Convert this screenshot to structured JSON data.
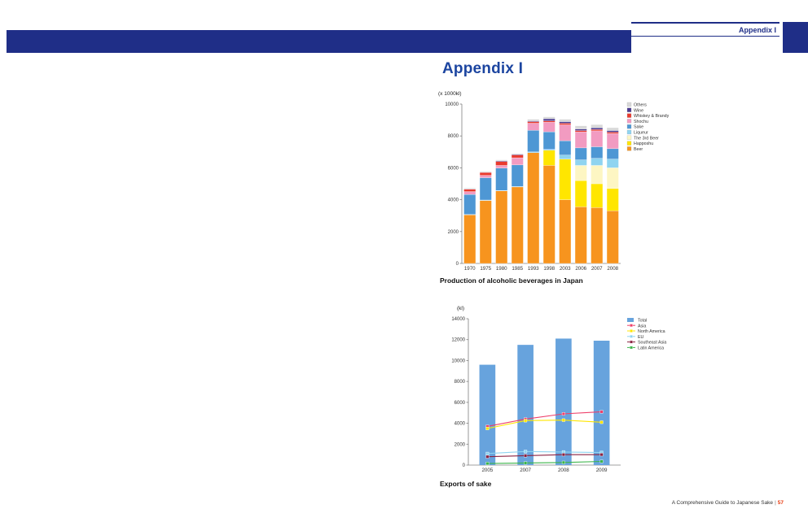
{
  "header": {
    "label": "Appendix I"
  },
  "page": {
    "title": "Appendix I"
  },
  "footer": {
    "text": "A Comprehensive Guide to Japanese Sake",
    "separator": "|",
    "page_number": "57"
  },
  "colors": {
    "header_blue": "#1f2e87",
    "title_blue": "#1c45a0",
    "page_number_red": "#e8380d"
  },
  "chart_data": [
    {
      "type": "bar",
      "stacked": true,
      "title": "Production of alcoholic beverages in Japan",
      "unit_label": "(x 1000kl)",
      "categories": [
        "1970",
        "1975",
        "1980",
        "1985",
        "1993",
        "1998",
        "2003",
        "2006",
        "2007",
        "2008"
      ],
      "ylim": [
        0,
        10000
      ],
      "yticks": [
        0,
        2000,
        4000,
        6000,
        8000,
        10000
      ],
      "grid": false,
      "legend_position": "right",
      "legend_top_to_bottom": [
        "Others",
        "Wine",
        "Whiskey & Brandy",
        "Shochu",
        "Sake",
        "Liqueur",
        "The 3rd Beer",
        "Happoshu",
        "Beer"
      ],
      "series": [
        {
          "name": "Beer",
          "color": "#f7941e",
          "values": [
            3050,
            3950,
            4550,
            4800,
            6950,
            6150,
            4000,
            3550,
            3500,
            3300
          ]
        },
        {
          "name": "Happoshu",
          "color": "#ffe600",
          "values": [
            0,
            0,
            0,
            0,
            0,
            950,
            2550,
            1650,
            1500,
            1400
          ]
        },
        {
          "name": "The 3rd Beer",
          "color": "#fdf6c3",
          "values": [
            0,
            0,
            0,
            0,
            0,
            0,
            0,
            950,
            1150,
            1300
          ]
        },
        {
          "name": "Liqueur",
          "color": "#8fd4f0",
          "values": [
            30,
            30,
            30,
            30,
            50,
            60,
            250,
            350,
            450,
            550
          ]
        },
        {
          "name": "Sake",
          "color": "#4e97d4",
          "values": [
            1250,
            1400,
            1400,
            1350,
            1350,
            1100,
            900,
            750,
            720,
            650
          ]
        },
        {
          "name": "Shochu",
          "color": "#f29bc1",
          "values": [
            180,
            150,
            170,
            450,
            450,
            600,
            1000,
            1000,
            1000,
            950
          ]
        },
        {
          "name": "Whiskey & Brandy",
          "color": "#e93a2e",
          "values": [
            150,
            180,
            250,
            180,
            100,
            90,
            100,
            90,
            90,
            90
          ]
        },
        {
          "name": "Wine",
          "color": "#4a3a90",
          "values": [
            20,
            20,
            40,
            40,
            50,
            130,
            100,
            100,
            100,
            100
          ]
        },
        {
          "name": "Others",
          "color": "#d9d9d9",
          "values": [
            50,
            50,
            60,
            50,
            100,
            120,
            150,
            200,
            200,
            180
          ]
        }
      ]
    },
    {
      "type": "combo",
      "title": "Exports of sake",
      "unit_label": "(kl)",
      "categories": [
        "2005",
        "2007",
        "2008",
        "2009"
      ],
      "ylim": [
        0,
        14000
      ],
      "yticks": [
        0,
        2000,
        4000,
        6000,
        8000,
        10000,
        12000,
        14000
      ],
      "grid": false,
      "legend_position": "right",
      "bar_series": {
        "name": "Total",
        "color": "#67a3dd",
        "values": [
          9600,
          11500,
          12100,
          11900
        ]
      },
      "line_series": [
        {
          "name": "Asia",
          "color": "#ee3f6a",
          "values": [
            3700,
            4400,
            4900,
            5100
          ]
        },
        {
          "name": "North America",
          "color": "#ffe600",
          "values": [
            3500,
            4250,
            4300,
            4100
          ]
        },
        {
          "name": "EU",
          "color": "#8fd4f0",
          "values": [
            1100,
            1300,
            1250,
            1200
          ]
        },
        {
          "name": "Southeast Asia",
          "color": "#8b2242",
          "values": [
            800,
            900,
            1000,
            1000
          ]
        },
        {
          "name": "Latin America",
          "color": "#3cb54a",
          "values": [
            150,
            200,
            250,
            350
          ]
        }
      ]
    }
  ]
}
